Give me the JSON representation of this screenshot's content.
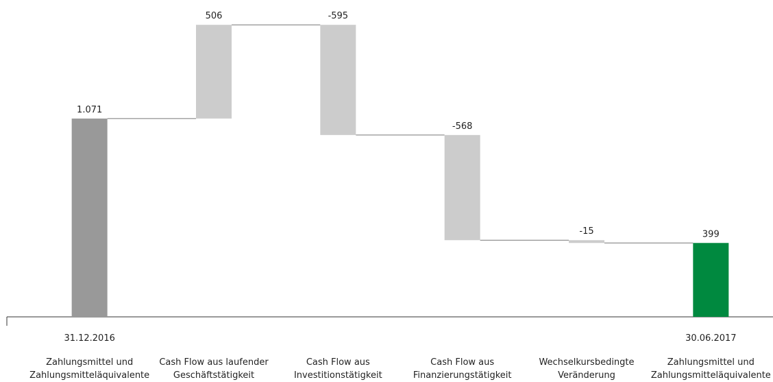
{
  "chart_data": {
    "type": "waterfall",
    "categories": [
      "Zahlungsmittel und\nZahlungsmitteläquivalente",
      "Cash Flow aus laufender\nGeschäftstätigkeit",
      "Cash Flow aus\nInvestitionstätigkeit",
      "Cash Flow aus\nFinanzierungstätigkeit",
      "Wechselkursbedingte\nVeränderung",
      "Zahlungsmittel und\nZahlungsmitteläquivalente"
    ],
    "dates": [
      "31.12.2016",
      null,
      null,
      null,
      null,
      "30.06.2017"
    ],
    "values": [
      1071,
      506,
      -595,
      -568,
      -15,
      399
    ],
    "value_labels": [
      "1.071",
      "506",
      "-595",
      "-568",
      "-15",
      "399"
    ],
    "start_color": "#999999",
    "delta_color": "#cccccc",
    "end_color": "#00893f",
    "ylim": [
      0,
      1600
    ]
  }
}
